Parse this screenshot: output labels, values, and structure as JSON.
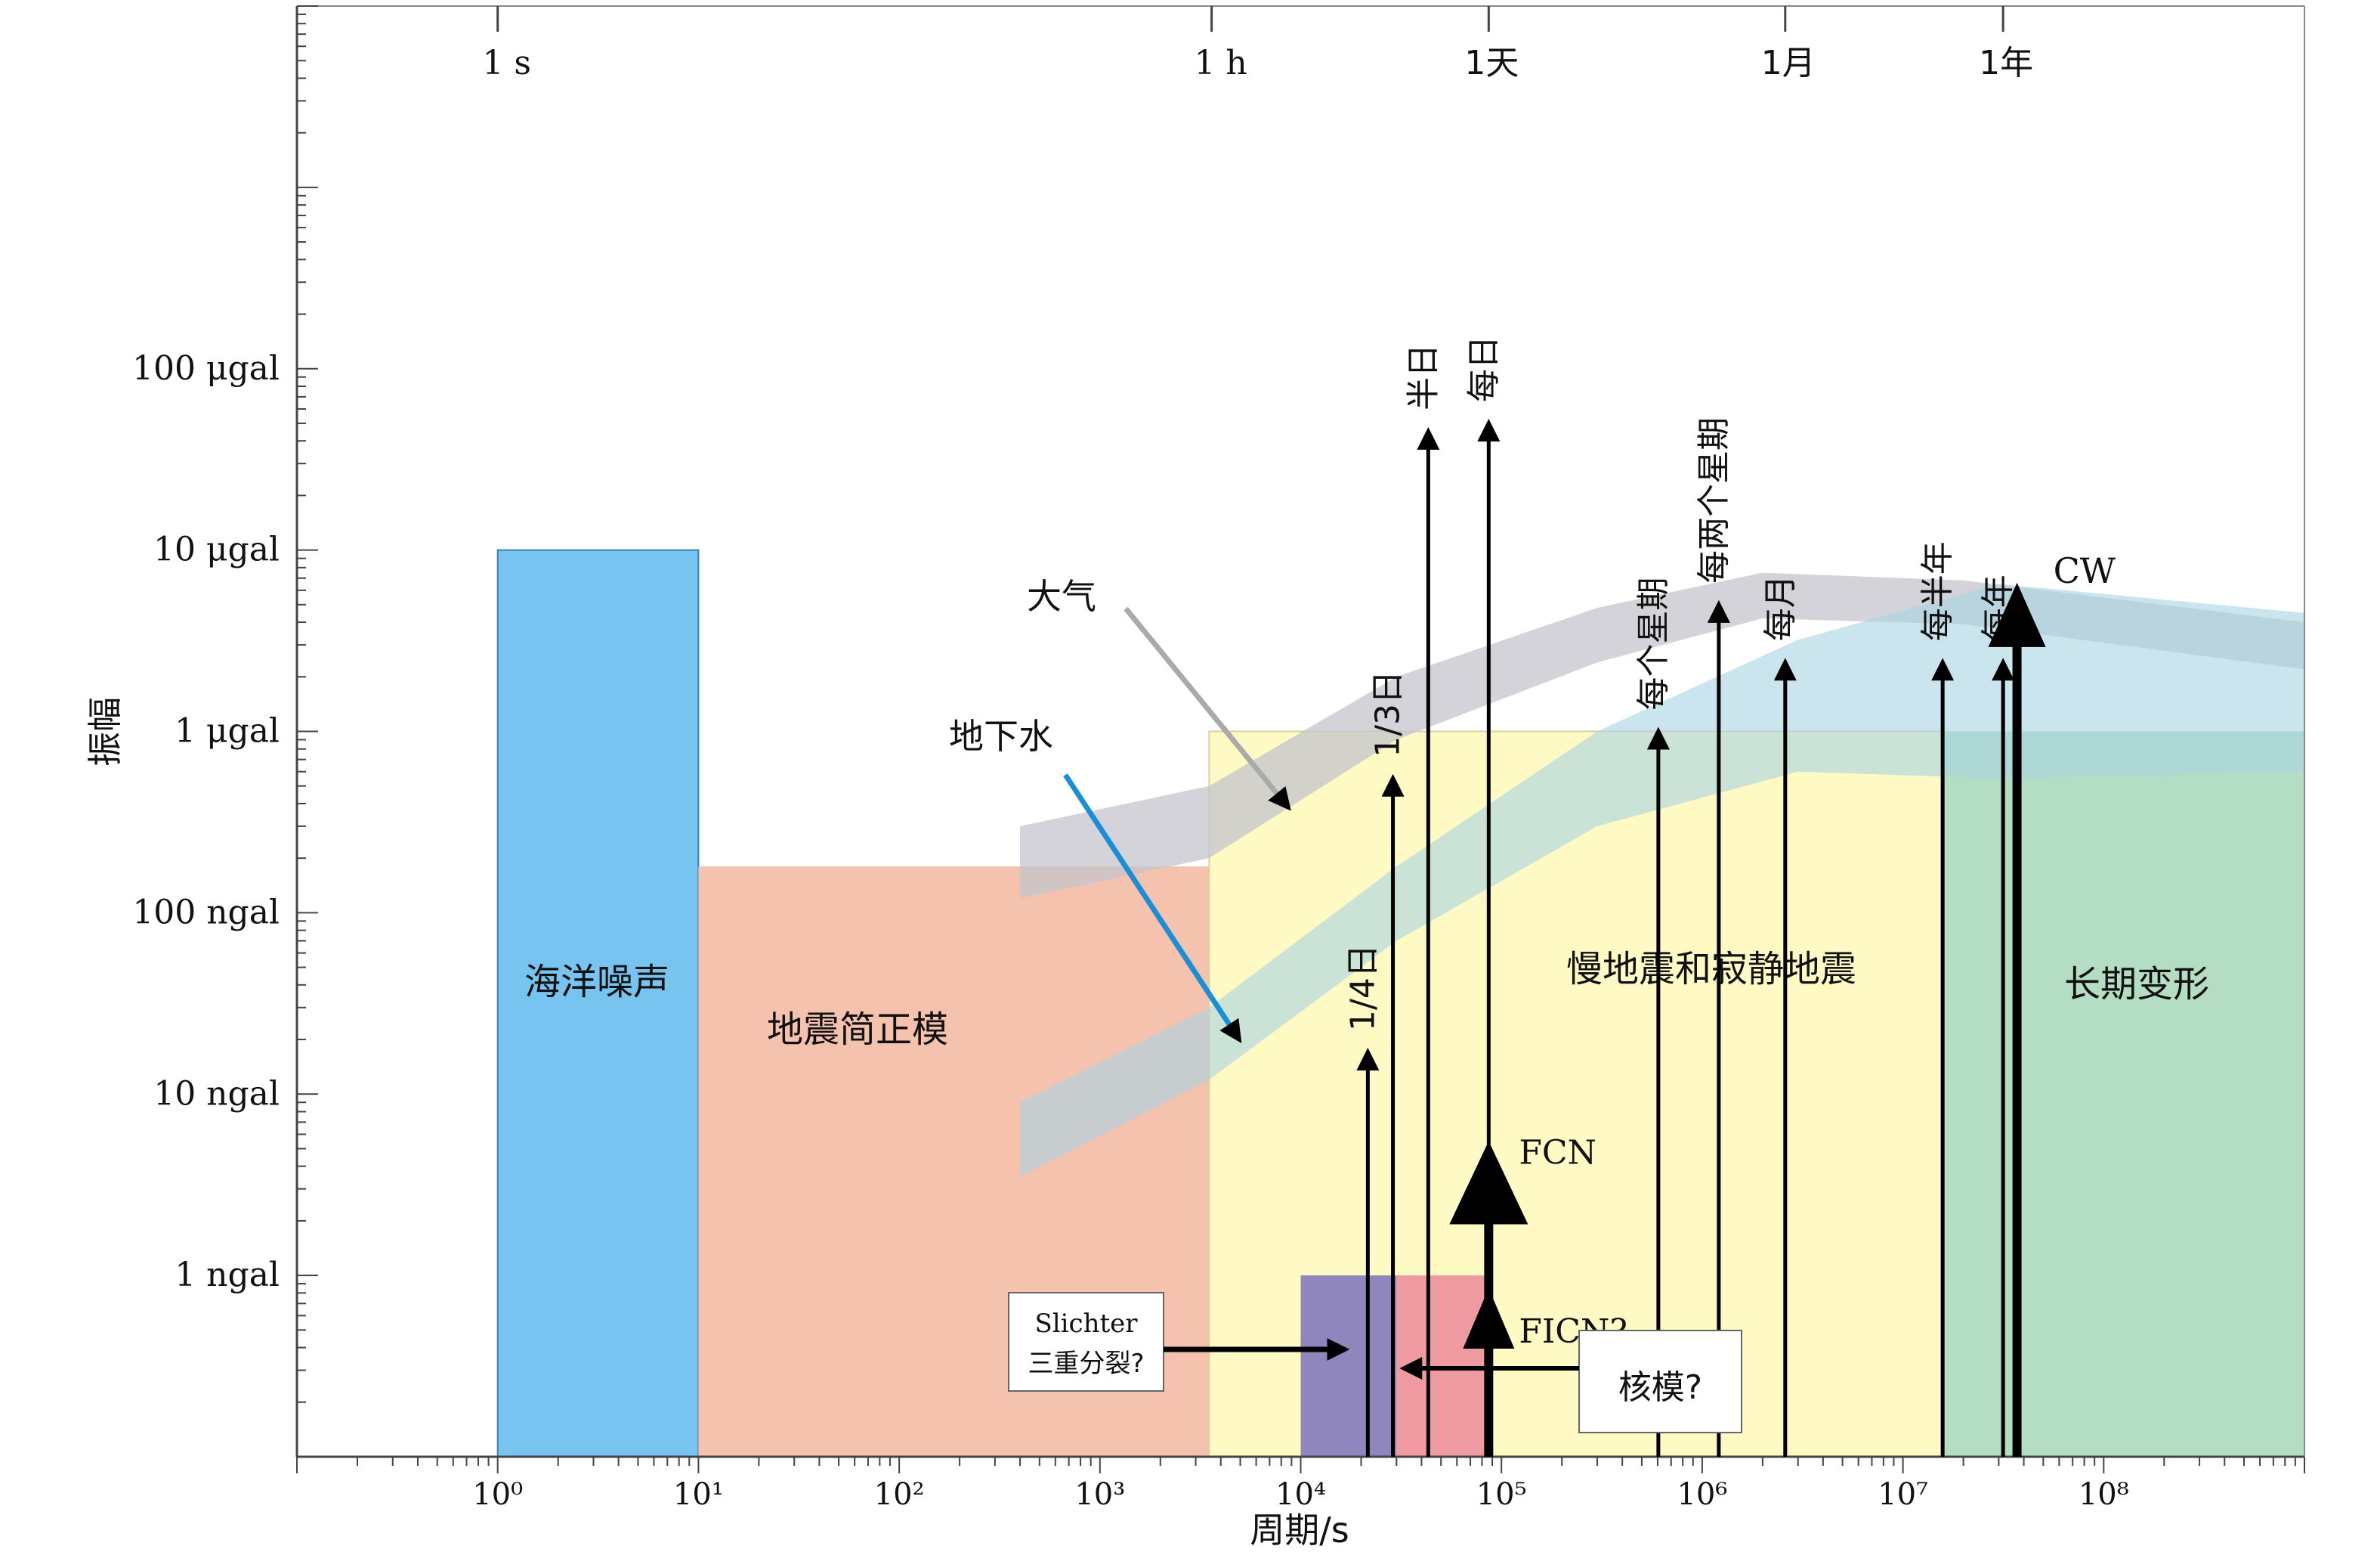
{
  "chart_data": {
    "type": "area",
    "xlabel": "周期/s",
    "ylabel": "振幅",
    "x_scale": "log",
    "y_scale": "log",
    "x_ticks": [
      {
        "value": 1,
        "label": "10⁰"
      },
      {
        "value": 10,
        "label": "10¹"
      },
      {
        "value": 100,
        "label": "10²"
      },
      {
        "value": 1000,
        "label": "10³"
      },
      {
        "value": 10000,
        "label": "10⁴"
      },
      {
        "value": 100000,
        "label": "10⁵"
      },
      {
        "value": 1000000,
        "label": "10⁶"
      },
      {
        "value": 10000000,
        "label": "10⁷"
      },
      {
        "value": 100000000,
        "label": "10⁸"
      }
    ],
    "top_ticks": [
      {
        "value": 1,
        "label": "1 s"
      },
      {
        "value": 3600,
        "label": "1 h"
      },
      {
        "value": 86400,
        "label": "1天"
      },
      {
        "value": 2592000,
        "label": "1月"
      },
      {
        "value": 31536000,
        "label": "1年"
      }
    ],
    "y_ticks": [
      {
        "value": 0.001,
        "label": "1 ngal"
      },
      {
        "value": 0.01,
        "label": "10 ngal"
      },
      {
        "value": 0.1,
        "label": "100 ngal"
      },
      {
        "value": 1,
        "label": "1 μgal"
      },
      {
        "value": 10,
        "label": "10 μgal"
      },
      {
        "value": 100,
        "label": "100 μgal"
      }
    ],
    "xlim": [
      0.1,
      1000000000
    ],
    "ylim": [
      0.0001,
      10000
    ],
    "regions": [
      {
        "label": "海洋噪声",
        "x": [
          1,
          10
        ],
        "y": [
          0.0001,
          10
        ],
        "color": "#76c4ef"
      },
      {
        "label": "地震简正模",
        "x": [
          10,
          3500
        ],
        "y": [
          0.0001,
          0.18
        ],
        "color": "#f5c2ae"
      },
      {
        "label": "慢地震和寂静地震",
        "x": [
          3500,
          16000000
        ],
        "y": [
          0.0001,
          1
        ],
        "color": "#fffac4"
      },
      {
        "label": "长期变形",
        "x": [
          16000000,
          1000000000
        ],
        "y": [
          0.0001,
          1
        ],
        "color": "#b4dec4"
      },
      {
        "label": "",
        "x": [
          10000,
          30000
        ],
        "y": [
          0.0001,
          0.001
        ],
        "color": "#8e86bd"
      },
      {
        "label": "",
        "x": [
          30000,
          90000
        ],
        "y": [
          0.0001,
          0.001
        ],
        "color": "#ee9aa0"
      }
    ],
    "bands": [
      {
        "label": "大气",
        "color": "#c4c4cc",
        "lower": [
          [
            400,
            0.12
          ],
          [
            3500,
            0.2
          ],
          [
            30000,
            0.9
          ],
          [
            300000,
            2.4
          ],
          [
            2000000,
            4.2
          ],
          [
            20000000,
            3.9
          ],
          [
            1000000000,
            2.2
          ]
        ],
        "upper": [
          [
            400,
            0.3
          ],
          [
            3500,
            0.5
          ],
          [
            30000,
            2.0
          ],
          [
            300000,
            4.8
          ],
          [
            2000000,
            7.5
          ],
          [
            20000000,
            6.8
          ],
          [
            1000000000,
            4.0
          ]
        ]
      },
      {
        "label": "地下水",
        "color": "#a9d3e3",
        "lower": [
          [
            400,
            0.0035
          ],
          [
            3500,
            0.012
          ],
          [
            30000,
            0.07
          ],
          [
            300000,
            0.3
          ],
          [
            3000000,
            0.6
          ],
          [
            30000000,
            0.55
          ],
          [
            1000000000,
            0.6
          ]
        ],
        "upper": [
          [
            400,
            0.009
          ],
          [
            3500,
            0.03
          ],
          [
            30000,
            0.18
          ],
          [
            300000,
            1.0
          ],
          [
            3000000,
            3.2
          ],
          [
            30000000,
            6.5
          ],
          [
            1000000000,
            4.5
          ]
        ]
      }
    ],
    "lines": [
      {
        "label": "1/4日",
        "x": 21600,
        "y_top": 0.017
      },
      {
        "label": "1/3日",
        "x": 28800,
        "y_top": 0.55
      },
      {
        "label": "半日",
        "x": 43200,
        "y_top": 45
      },
      {
        "label": "每日",
        "x": 86400,
        "y_top": 50
      },
      {
        "label": "每个星期",
        "x": 604800,
        "y_top": 1.0
      },
      {
        "label": "每两个星期",
        "x": 1209600,
        "y_top": 5.0
      },
      {
        "label": "每月",
        "x": 2592000,
        "y_top": 2.4
      },
      {
        "label": "每半年",
        "x": 15768000,
        "y_top": 2.4
      },
      {
        "label": "每年",
        "x": 31536000,
        "y_top": 2.4
      },
      {
        "label": "CW",
        "x": 37000000,
        "y_top": 6.0
      }
    ],
    "heavy_arrows": [
      {
        "label": "FCN",
        "x": 86400,
        "y_from": 0.0001,
        "y_to": 0.0055
      },
      {
        "label": "FICN?",
        "x": 86400,
        "y_from": 0.0001,
        "y_to": 0.00085
      }
    ],
    "annotations": [
      {
        "label": "Slichter 三重分裂?",
        "points_to": [
          14000,
          0.00045
        ]
      },
      {
        "label": "核模?",
        "points_to": [
          20000,
          0.00035
        ]
      }
    ]
  }
}
